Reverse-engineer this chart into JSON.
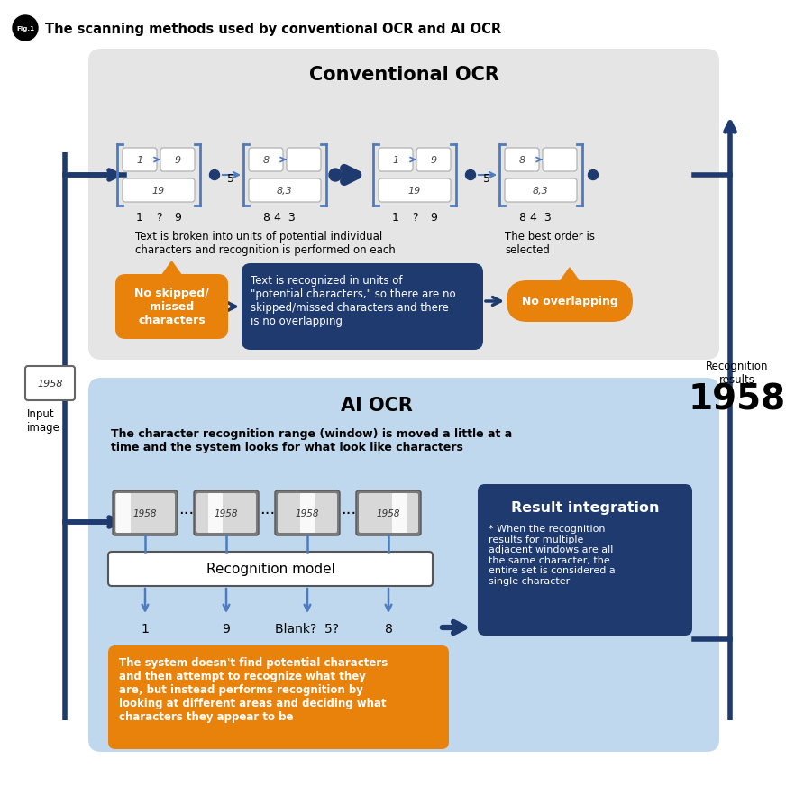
{
  "title": "The scanning methods used by conventional OCR and AI OCR",
  "fig_label": "Fig.1",
  "bg_color": "#ffffff",
  "conv_ocr_bg": "#e5e5e5",
  "ai_ocr_bg": "#bfd8ee",
  "dark_blue": "#1e3a6e",
  "medium_blue": "#2e5fa3",
  "light_blue": "#4e7bbf",
  "orange": "#e8820a",
  "conv_title": "Conventional OCR",
  "ai_title": "AI OCR",
  "conv_desc1": "Text is broken into units of potential individual\ncharacters and recognition is performed on each",
  "conv_desc2": "The best order is\nselected",
  "conv_orange_text": "No skipped/\nmissed\ncharacters",
  "conv_blue_text": "Text is recognized in units of\n\"potential characters,\" so there are no\nskipped/missed characters and there\nis no overlapping",
  "conv_orange2_text": "No overlapping",
  "ai_desc": "The character recognition range (window) is moved a little at a\ntime and the system looks for what look like characters",
  "rec_model": "Recognition model",
  "ai_labels": [
    "1",
    "9",
    "Blank?  5?",
    "8"
  ],
  "result_title": "Result integration",
  "result_text": "* When the recognition\nresults for multiple\nadjacent windows are all\nthe same character, the\nentire set is considered a\nsingle character",
  "ai_orange_text": "The system doesn't find potential characters\nand then attempt to recognize what they\nare, but instead performs recognition by\nlooking at different areas and deciding what\ncharacters they appear to be",
  "input_label": "Input\nimage",
  "recog_label": "Recognition\nresults",
  "result_number": "1958"
}
